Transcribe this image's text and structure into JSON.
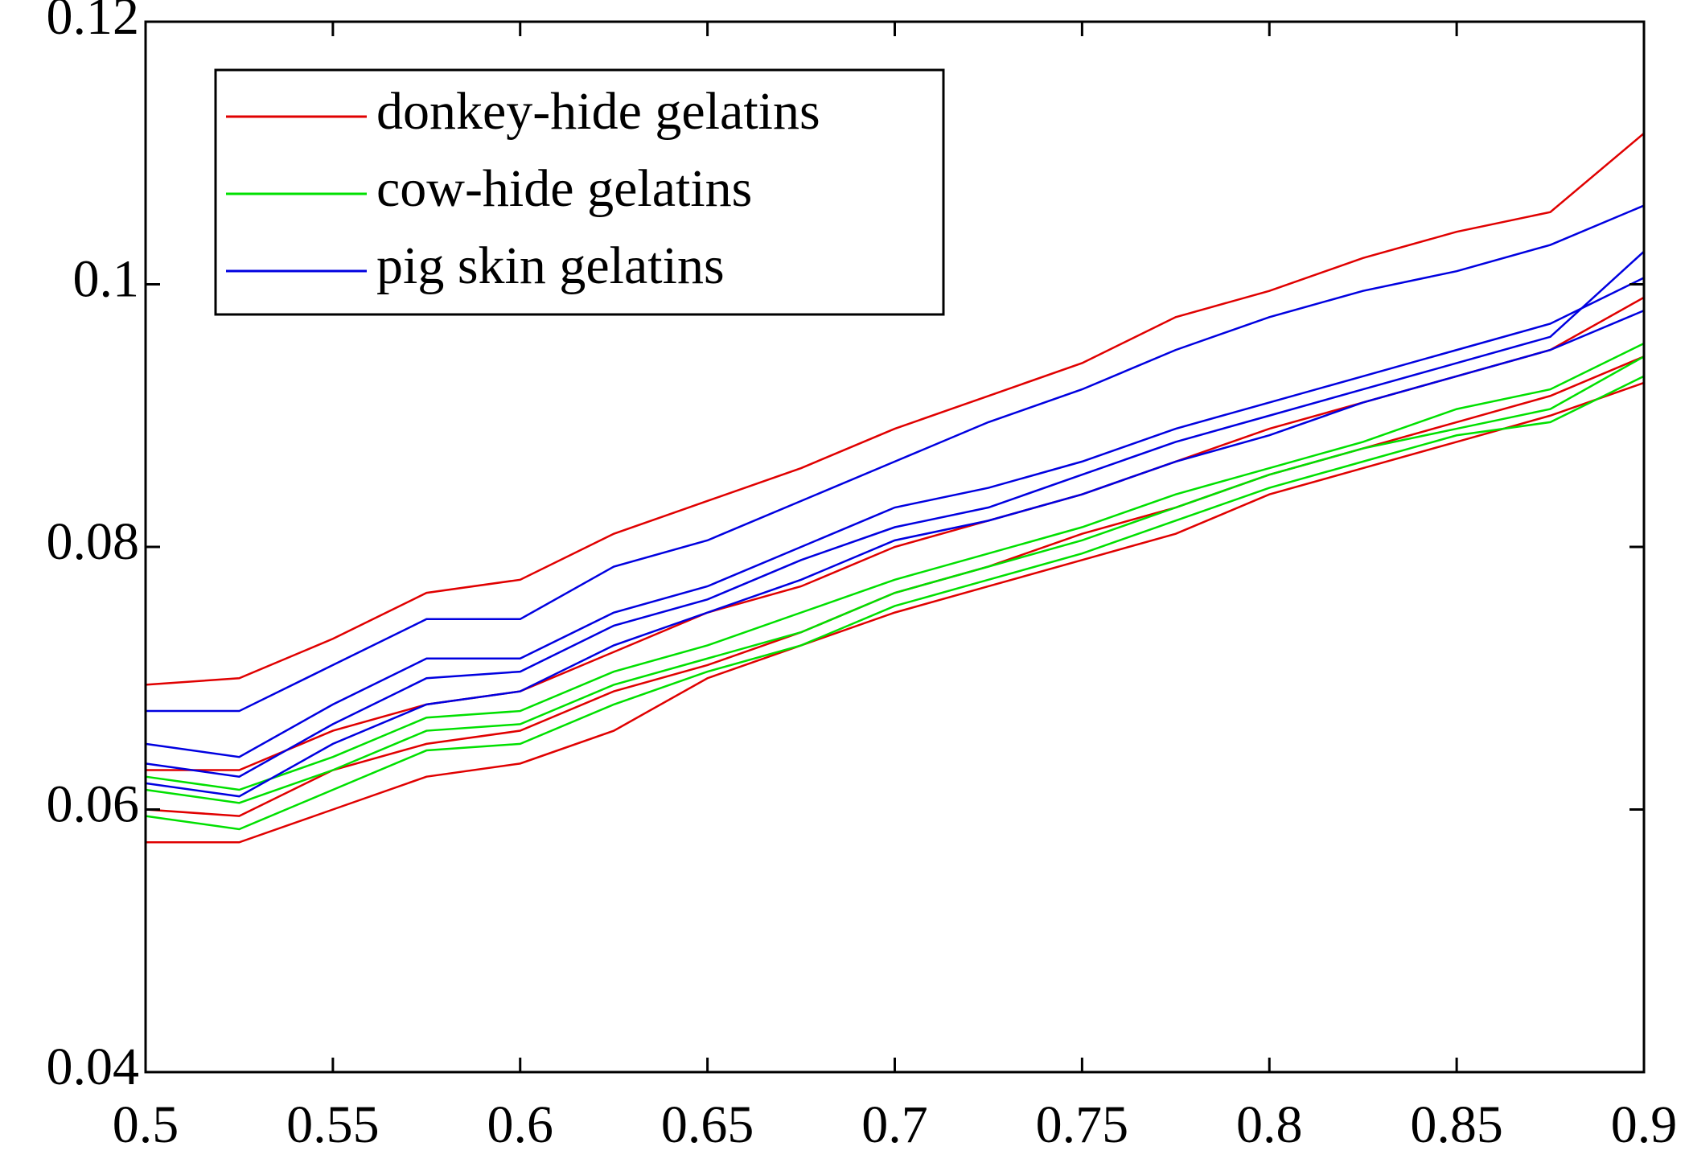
{
  "chart_data": {
    "type": "line",
    "x": [
      0.5,
      0.525,
      0.55,
      0.575,
      0.6,
      0.625,
      0.65,
      0.675,
      0.7,
      0.725,
      0.75,
      0.775,
      0.8,
      0.825,
      0.85,
      0.875,
      0.9
    ],
    "series": [
      {
        "name": "donkey-hide gelatins",
        "color": "#e00000",
        "values": [
          [
            0.0695,
            0.07,
            0.073,
            0.0765,
            0.0775,
            0.081,
            0.0835,
            0.086,
            0.089,
            0.0915,
            0.094,
            0.0975,
            0.0995,
            0.102,
            0.104,
            0.1055,
            0.1115
          ],
          [
            0.063,
            0.063,
            0.066,
            0.068,
            0.069,
            0.072,
            0.075,
            0.077,
            0.08,
            0.082,
            0.084,
            0.0865,
            0.089,
            0.091,
            0.093,
            0.095,
            0.099
          ],
          [
            0.06,
            0.0595,
            0.063,
            0.065,
            0.066,
            0.069,
            0.071,
            0.0735,
            0.0765,
            0.0785,
            0.081,
            0.083,
            0.0855,
            0.0875,
            0.0895,
            0.0915,
            0.0945
          ],
          [
            0.0575,
            0.0575,
            0.06,
            0.0625,
            0.0635,
            0.066,
            0.07,
            0.0725,
            0.075,
            0.077,
            0.079,
            0.081,
            0.084,
            0.086,
            0.088,
            0.09,
            0.0925
          ]
        ]
      },
      {
        "name": "cow-hide gelatins",
        "color": "#00e000",
        "values": [
          [
            0.0625,
            0.0615,
            0.064,
            0.067,
            0.0675,
            0.0705,
            0.0725,
            0.075,
            0.0775,
            0.0795,
            0.0815,
            0.084,
            0.086,
            0.088,
            0.0905,
            0.092,
            0.0955
          ],
          [
            0.0615,
            0.0605,
            0.063,
            0.066,
            0.0665,
            0.0695,
            0.0715,
            0.0735,
            0.0765,
            0.0785,
            0.0805,
            0.083,
            0.0855,
            0.0875,
            0.089,
            0.0905,
            0.0945
          ],
          [
            0.0595,
            0.0585,
            0.0615,
            0.0645,
            0.065,
            0.068,
            0.0705,
            0.0725,
            0.0755,
            0.0775,
            0.0795,
            0.082,
            0.0845,
            0.0865,
            0.0885,
            0.0895,
            0.093
          ]
        ]
      },
      {
        "name": "pig skin gelatins",
        "color": "#0000e0",
        "values": [
          [
            0.0675,
            0.0675,
            0.071,
            0.0745,
            0.0745,
            0.0785,
            0.0805,
            0.0835,
            0.0865,
            0.0895,
            0.092,
            0.095,
            0.0975,
            0.0995,
            0.101,
            0.103,
            0.106
          ],
          [
            0.065,
            0.064,
            0.068,
            0.0715,
            0.0715,
            0.075,
            0.077,
            0.08,
            0.083,
            0.0845,
            0.0865,
            0.089,
            0.091,
            0.093,
            0.095,
            0.097,
            0.1005
          ],
          [
            0.0635,
            0.0625,
            0.0665,
            0.07,
            0.0705,
            0.074,
            0.076,
            0.079,
            0.0815,
            0.083,
            0.0855,
            0.088,
            0.09,
            0.092,
            0.094,
            0.096,
            0.1025
          ],
          [
            0.062,
            0.061,
            0.065,
            0.068,
            0.069,
            0.0725,
            0.075,
            0.0775,
            0.0805,
            0.082,
            0.084,
            0.0865,
            0.0885,
            0.091,
            0.093,
            0.095,
            0.098
          ]
        ]
      }
    ],
    "xlim": [
      0.5,
      0.9
    ],
    "xticks": [
      0.5,
      0.55,
      0.6,
      0.65,
      0.7,
      0.75,
      0.8,
      0.85,
      0.9
    ],
    "ylim": [
      0.04,
      0.12
    ],
    "yticks": [
      0.04,
      0.06,
      0.08,
      0.1,
      0.12
    ],
    "legend": "upper left",
    "grid": false
  }
}
